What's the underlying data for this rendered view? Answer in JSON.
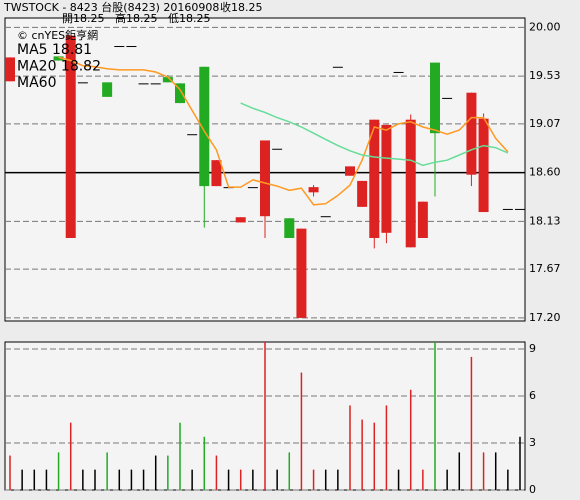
{
  "chart_data": {
    "type": "candlestick",
    "title": "TWSTOCK - 8423 台股(8423) 20160908",
    "ohlc_labels": [
      "收18.25",
      "開18.25",
      "高18.25",
      "低18.25"
    ],
    "source": "© cnYES鉅亨網",
    "up_color": "#dd2222",
    "down_color": "#22aa22",
    "flat_color": "#000000",
    "ylim": [
      17.17,
      20.09
    ],
    "yticks": [
      {
        "value": 20,
        "label": "20.00"
      },
      19.53,
      19.07,
      {
        "value": 18.6,
        "label": "18.60"
      },
      18.13,
      17.67,
      {
        "value": 17.2,
        "label": "17.20"
      }
    ],
    "reference_line": 18.6,
    "grid": true,
    "candles": [
      {
        "open": 19.48,
        "high": 19.71,
        "low": 19.48,
        "close": 19.71
      },
      null,
      null,
      null,
      {
        "open": 19.72,
        "high": 19.72,
        "low": 19.68,
        "close": 19.68
      },
      {
        "open": 17.97,
        "high": 19.92,
        "low": 17.97,
        "close": 19.92
      },
      {
        "open": 19.47,
        "high": 19.47,
        "low": 19.47,
        "close": 19.47
      },
      null,
      {
        "open": 19.47,
        "high": 19.47,
        "low": 19.33,
        "close": 19.33
      },
      {
        "open": 19.82,
        "high": 19.82,
        "low": 19.82,
        "close": 19.82
      },
      {
        "open": 19.82,
        "high": 19.82,
        "low": 19.82,
        "close": 19.82
      },
      {
        "open": 19.46,
        "high": 19.46,
        "low": 19.46,
        "close": 19.46
      },
      {
        "open": 19.46,
        "high": 19.46,
        "low": 19.46,
        "close": 19.46
      },
      {
        "open": 19.52,
        "high": 19.54,
        "low": 19.47,
        "close": 19.47
      },
      {
        "open": 19.46,
        "high": 19.46,
        "low": 19.27,
        "close": 19.27
      },
      {
        "open": 18.97,
        "high": 18.97,
        "low": 18.97,
        "close": 18.97
      },
      {
        "open": 19.62,
        "high": 19.62,
        "low": 18.07,
        "close": 18.47
      },
      {
        "open": 18.47,
        "high": 18.72,
        "low": 18.47,
        "close": 18.72
      },
      {
        "open": 18.46,
        "high": 18.46,
        "low": 18.46,
        "close": 18.46
      },
      {
        "open": 18.12,
        "high": 18.17,
        "low": 18.12,
        "close": 18.17
      },
      {
        "open": 18.46,
        "high": 18.46,
        "low": 18.46,
        "close": 18.46
      },
      {
        "open": 18.18,
        "high": 18.91,
        "low": 17.97,
        "close": 18.91
      },
      {
        "open": 18.83,
        "high": 18.83,
        "low": 18.83,
        "close": 18.83
      },
      {
        "open": 18.16,
        "high": 18.16,
        "low": 17.97,
        "close": 17.97
      },
      {
        "open": 17.2,
        "high": 18.06,
        "low": 17.2,
        "close": 18.06
      },
      {
        "open": 18.41,
        "high": 18.48,
        "low": 18.37,
        "close": 18.46
      },
      {
        "open": 18.18,
        "high": 18.18,
        "low": 18.18,
        "close": 18.18
      },
      {
        "open": 19.62,
        "high": 19.62,
        "low": 19.62,
        "close": 19.62
      },
      {
        "open": 18.57,
        "high": 18.66,
        "low": 18.57,
        "close": 18.66
      },
      {
        "open": 18.27,
        "high": 18.52,
        "low": 18.27,
        "close": 18.52
      },
      {
        "open": 17.97,
        "high": 19.11,
        "low": 17.87,
        "close": 19.11
      },
      {
        "open": 18.02,
        "high": 19.06,
        "low": 17.92,
        "close": 19.06
      },
      {
        "open": 19.57,
        "high": 19.57,
        "low": 19.57,
        "close": 19.57
      },
      {
        "open": 17.88,
        "high": 19.16,
        "low": 17.88,
        "close": 19.11
      },
      {
        "open": 17.97,
        "high": 18.32,
        "low": 17.97,
        "close": 18.32
      },
      {
        "open": 19.66,
        "high": 19.66,
        "low": 18.37,
        "close": 18.98
      },
      {
        "open": 19.32,
        "high": 19.32,
        "low": 19.32,
        "close": 19.32
      },
      null,
      {
        "open": 18.58,
        "high": 19.37,
        "low": 18.47,
        "close": 19.37
      },
      {
        "open": 18.22,
        "high": 19.17,
        "low": 18.22,
        "close": 19.12
      },
      null,
      {
        "open": 18.25,
        "high": 18.25,
        "low": 18.25,
        "close": 18.25
      },
      {
        "open": 18.25,
        "high": 18.25,
        "low": 18.25,
        "close": 18.25
      }
    ],
    "series": [
      {
        "name": "MA5 18.81",
        "color": "#ff9922",
        "values": [
          null,
          null,
          null,
          null,
          19.71,
          19.68,
          19.63,
          19.62,
          19.6,
          19.59,
          19.59,
          19.59,
          19.57,
          19.52,
          19.4,
          19.2,
          19.0,
          18.82,
          18.46,
          18.46,
          18.53,
          18.5,
          18.47,
          18.43,
          18.45,
          18.29,
          18.3,
          18.38,
          18.48,
          18.72,
          19.04,
          19.01,
          19.07,
          19.09,
          19.04,
          19.01,
          18.97,
          19.01,
          19.13,
          19.13,
          18.93,
          18.8,
          null
        ]
      },
      {
        "name": "MA20 18.82",
        "color": "#66dd99",
        "values": [
          null,
          null,
          null,
          null,
          null,
          null,
          null,
          null,
          null,
          null,
          null,
          null,
          null,
          null,
          null,
          null,
          null,
          null,
          null,
          19.27,
          19.22,
          19.18,
          19.13,
          19.09,
          19.04,
          18.98,
          18.92,
          18.86,
          18.81,
          18.77,
          18.75,
          18.74,
          18.73,
          18.72,
          18.67,
          18.7,
          18.72,
          18.77,
          18.82,
          18.86,
          18.84,
          18.79,
          null
        ]
      },
      {
        "name": "MA60",
        "color": "#8844aa",
        "values": [
          null,
          null,
          null,
          null,
          null,
          null,
          null,
          null,
          null,
          null,
          null,
          null,
          null,
          null,
          null,
          null,
          null,
          null,
          null,
          null,
          null,
          null,
          null,
          null,
          null,
          null,
          null,
          null,
          null,
          null,
          null,
          null,
          null,
          null,
          null,
          null,
          null,
          null,
          null,
          null,
          null,
          null,
          null
        ]
      }
    ],
    "volume": {
      "ylim": [
        0,
        9.45
      ],
      "yticks": [
        0,
        3,
        6,
        9
      ],
      "values": [
        2.2,
        1.3,
        1.3,
        1.3,
        2.4,
        4.3,
        1.3,
        1.3,
        2.4,
        1.3,
        1.3,
        1.3,
        2.2,
        2.2,
        4.3,
        1.3,
        3.4,
        2.2,
        1.3,
        1.3,
        1.3,
        9.45,
        1.3,
        2.4,
        7.5,
        1.3,
        1.3,
        1.3,
        5.4,
        4.5,
        4.3,
        5.4,
        1.3,
        6.4,
        1.3,
        9.45,
        1.3,
        2.4,
        8.5,
        2.4,
        2.4,
        1.3,
        3.4
      ]
    }
  }
}
